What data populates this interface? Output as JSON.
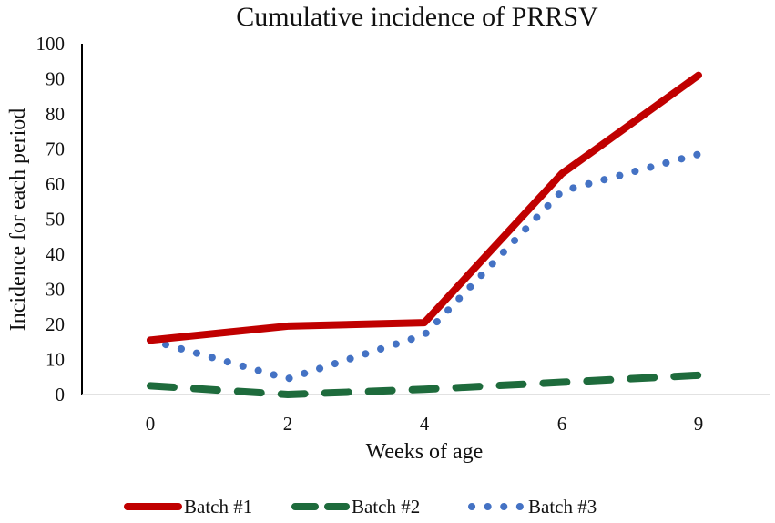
{
  "chart_data": {
    "type": "line",
    "title": "Cumulative incidence of PRRSV",
    "xlabel": "Weeks of age",
    "ylabel": "Incidence for each period",
    "categories": [
      "0",
      "2",
      "4",
      "6",
      "9"
    ],
    "ylim": [
      0,
      100
    ],
    "yticks": [
      "0",
      "10",
      "20",
      "30",
      "40",
      "50",
      "60",
      "70",
      "80",
      "90",
      "100"
    ],
    "grid": false,
    "legend_position": "bottom",
    "series": [
      {
        "name": "Batch #1",
        "values": [
          15.5,
          19.5,
          20.5,
          63,
          91
        ],
        "color": "#c00000",
        "style": "solid"
      },
      {
        "name": "Batch #2",
        "values": [
          2.5,
          0,
          1.5,
          3.5,
          5.5
        ],
        "color": "#1e6b3c",
        "style": "dashed"
      },
      {
        "name": "Batch #3",
        "values": [
          15.5,
          4.5,
          17,
          58,
          68.5
        ],
        "color": "#4472c4",
        "style": "dotted"
      }
    ]
  }
}
